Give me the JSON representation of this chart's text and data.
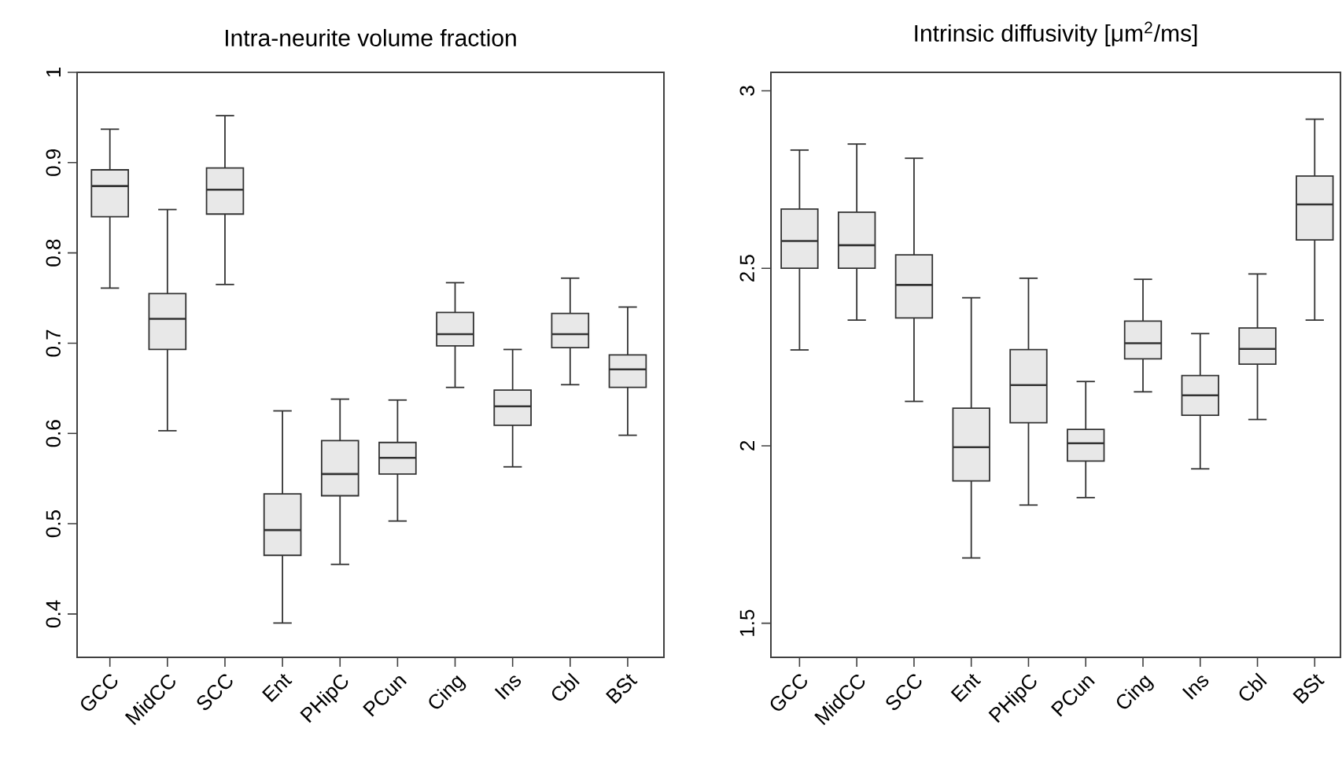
{
  "chart_data": [
    {
      "type": "box",
      "title": "Intra-neurite volume fraction",
      "categories": [
        "GCC",
        "MidCC",
        "SCC",
        "Ent",
        "PHipC",
        "PCun",
        "Cing",
        "Ins",
        "Cbl",
        "BSt"
      ],
      "ylim": [
        0.352,
        1.0
      ],
      "yticks": [
        0.4,
        0.5,
        0.6,
        0.7,
        0.8,
        0.9,
        1
      ],
      "grid": false,
      "series": [
        {
          "color": "#e8e8e8",
          "boxes": [
            {
              "low": 0.761,
              "q1": 0.84,
              "median": 0.874,
              "q3": 0.892,
              "high": 0.937
            },
            {
              "low": 0.603,
              "q1": 0.693,
              "median": 0.727,
              "q3": 0.755,
              "high": 0.848
            },
            {
              "low": 0.765,
              "q1": 0.843,
              "median": 0.87,
              "q3": 0.894,
              "high": 0.952
            },
            {
              "low": 0.39,
              "q1": 0.465,
              "median": 0.493,
              "q3": 0.533,
              "high": 0.625
            },
            {
              "low": 0.455,
              "q1": 0.531,
              "median": 0.555,
              "q3": 0.592,
              "high": 0.638
            },
            {
              "low": 0.503,
              "q1": 0.555,
              "median": 0.573,
              "q3": 0.59,
              "high": 0.637
            },
            {
              "low": 0.651,
              "q1": 0.697,
              "median": 0.71,
              "q3": 0.734,
              "high": 0.767
            },
            {
              "low": 0.563,
              "q1": 0.609,
              "median": 0.63,
              "q3": 0.648,
              "high": 0.693
            },
            {
              "low": 0.654,
              "q1": 0.695,
              "median": 0.71,
              "q3": 0.733,
              "high": 0.772
            },
            {
              "low": 0.598,
              "q1": 0.651,
              "median": 0.671,
              "q3": 0.687,
              "high": 0.74
            }
          ]
        }
      ]
    },
    {
      "type": "box",
      "title": "Intrinsic diffusivity [μm$^{2}$/ms]",
      "categories": [
        "GCC",
        "MidCC",
        "SCC",
        "Ent",
        "PHipC",
        "PCun",
        "Cing",
        "Ins",
        "Cbl",
        "BSt"
      ],
      "ylim": [
        1.404,
        3.052
      ],
      "yticks": [
        1.5,
        2,
        2.5,
        3
      ],
      "grid": false,
      "series": [
        {
          "color": "#e8e8e8",
          "boxes": [
            {
              "low": 2.27,
              "q1": 2.5,
              "median": 2.577,
              "q3": 2.667,
              "high": 2.833
            },
            {
              "low": 2.354,
              "q1": 2.5,
              "median": 2.565,
              "q3": 2.658,
              "high": 2.85
            },
            {
              "low": 2.125,
              "q1": 2.36,
              "median": 2.453,
              "q3": 2.538,
              "high": 2.81
            },
            {
              "low": 1.684,
              "q1": 1.901,
              "median": 1.996,
              "q3": 2.106,
              "high": 2.417
            },
            {
              "low": 1.833,
              "q1": 2.065,
              "median": 2.171,
              "q3": 2.271,
              "high": 2.472
            },
            {
              "low": 1.854,
              "q1": 1.957,
              "median": 2.007,
              "q3": 2.046,
              "high": 2.181
            },
            {
              "low": 2.152,
              "q1": 2.245,
              "median": 2.289,
              "q3": 2.351,
              "high": 2.469
            },
            {
              "low": 1.935,
              "q1": 2.086,
              "median": 2.142,
              "q3": 2.198,
              "high": 2.316
            },
            {
              "low": 2.074,
              "q1": 2.23,
              "median": 2.273,
              "q3": 2.332,
              "high": 2.484
            },
            {
              "low": 2.354,
              "q1": 2.58,
              "median": 2.68,
              "q3": 2.76,
              "high": 2.92
            }
          ]
        }
      ]
    }
  ]
}
